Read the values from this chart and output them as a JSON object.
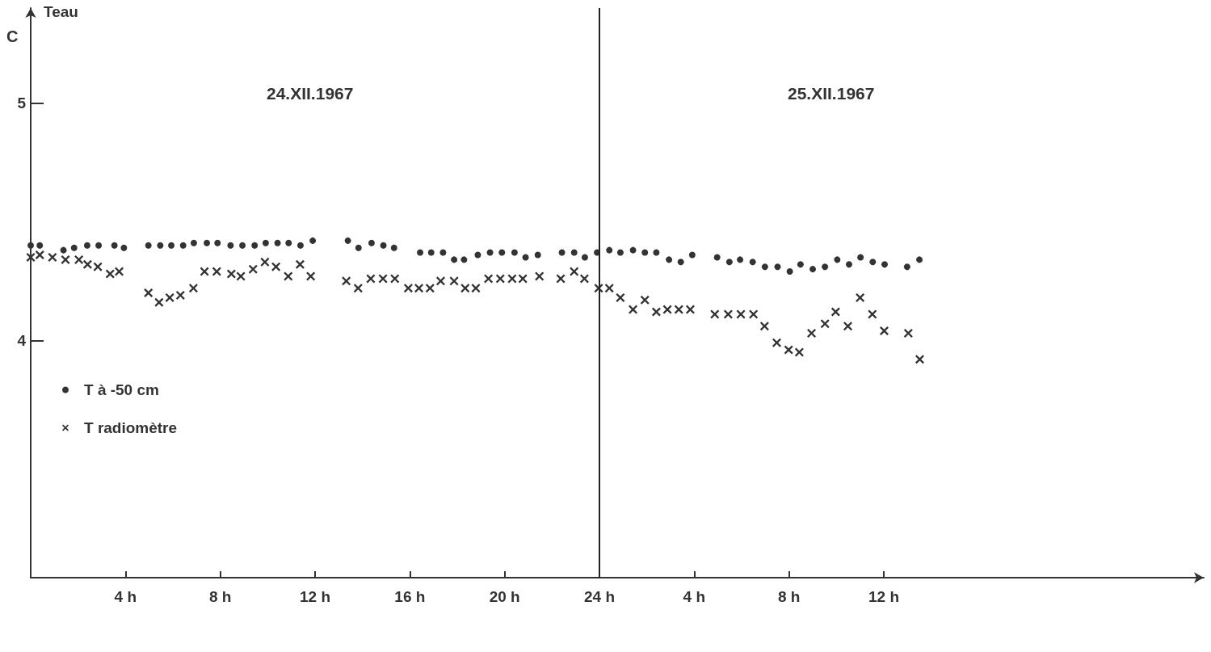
{
  "chart_data": {
    "type": "scatter",
    "ylabel": "Teau",
    "annotations": [
      "24.XII.1967",
      "25.XII.1967",
      "C"
    ],
    "xlim": [
      "1967-12-24T00:00",
      "1967-12-26T01:30"
    ],
    "ylim": [
      3,
      5.4
    ],
    "yticks": [
      4,
      5
    ],
    "xticks": [
      {
        "value": "1967-12-24T04:00",
        "label": "4 h"
      },
      {
        "value": "1967-12-24T08:00",
        "label": "8 h"
      },
      {
        "value": "1967-12-24T12:00",
        "label": "12 h"
      },
      {
        "value": "1967-12-24T16:00",
        "label": "16 h"
      },
      {
        "value": "1967-12-24T20:00",
        "label": "20 h"
      },
      {
        "value": "1967-12-25T00:00",
        "label": "24 h"
      },
      {
        "value": "1967-12-25T04:00",
        "label": "4 h"
      },
      {
        "value": "1967-12-25T08:00",
        "label": "8 h"
      },
      {
        "value": "1967-12-25T12:00",
        "label": "12 h"
      }
    ],
    "ref_lines": [
      {
        "axis": "x",
        "value": "1967-12-25T00:00",
        "label": null,
        "color": "#222222"
      }
    ],
    "grid": false,
    "legend": "bottom left",
    "series": [
      {
        "name": "T à -50 cm",
        "color": "#333333",
        "marker": "circle",
        "x": [
          "1967-12-24T00:00",
          "1967-12-24T00:23",
          "1967-12-24T01:23",
          "1967-12-24T01:50",
          "1967-12-24T02:23",
          "1967-12-24T02:52",
          "1967-12-24T03:32",
          "1967-12-24T03:56",
          "1967-12-24T04:58",
          "1967-12-24T05:28",
          "1967-12-24T05:56",
          "1967-12-24T06:26",
          "1967-12-24T06:53",
          "1967-12-24T07:26",
          "1967-12-24T07:53",
          "1967-12-24T08:26",
          "1967-12-24T08:56",
          "1967-12-24T09:27",
          "1967-12-24T09:55",
          "1967-12-24T10:25",
          "1967-12-24T10:53",
          "1967-12-24T11:23",
          "1967-12-24T11:54",
          "1967-12-24T13:23",
          "1967-12-24T13:50",
          "1967-12-24T14:23",
          "1967-12-24T14:53",
          "1967-12-24T15:20",
          "1967-12-24T16:26",
          "1967-12-24T16:54",
          "1967-12-24T17:24",
          "1967-12-24T17:52",
          "1967-12-24T18:17",
          "1967-12-24T18:52",
          "1967-12-24T19:23",
          "1967-12-24T19:53",
          "1967-12-24T20:25",
          "1967-12-24T20:53",
          "1967-12-24T21:24",
          "1967-12-24T22:25",
          "1967-12-24T22:56",
          "1967-12-24T23:23",
          "1967-12-24T23:54",
          "1967-12-25T00:25",
          "1967-12-25T00:53",
          "1967-12-25T01:25",
          "1967-12-25T01:55",
          "1967-12-25T02:24",
          "1967-12-25T02:56",
          "1967-12-25T03:26",
          "1967-12-25T03:55",
          "1967-12-25T04:58",
          "1967-12-25T05:29",
          "1967-12-25T05:56",
          "1967-12-25T06:28",
          "1967-12-25T06:59",
          "1967-12-25T07:31",
          "1967-12-25T08:02",
          "1967-12-25T08:29",
          "1967-12-25T09:00",
          "1967-12-25T09:31",
          "1967-12-25T10:02",
          "1967-12-25T10:32",
          "1967-12-25T11:01",
          "1967-12-25T11:32",
          "1967-12-25T12:02",
          "1967-12-25T12:59",
          "1967-12-25T13:30"
        ],
        "values": [
          4.4,
          4.4,
          4.38,
          4.39,
          4.4,
          4.4,
          4.4,
          4.39,
          4.4,
          4.4,
          4.4,
          4.4,
          4.41,
          4.41,
          4.41,
          4.4,
          4.4,
          4.4,
          4.41,
          4.41,
          4.41,
          4.4,
          4.42,
          4.42,
          4.39,
          4.41,
          4.4,
          4.39,
          4.37,
          4.37,
          4.37,
          4.34,
          4.34,
          4.36,
          4.37,
          4.37,
          4.37,
          4.35,
          4.36,
          4.37,
          4.37,
          4.35,
          4.37,
          4.38,
          4.37,
          4.38,
          4.37,
          4.37,
          4.34,
          4.33,
          4.36,
          4.35,
          4.33,
          4.34,
          4.33,
          4.31,
          4.31,
          4.29,
          4.32,
          4.3,
          4.31,
          4.34,
          4.32,
          4.35,
          4.33,
          4.32,
          4.31,
          4.34
        ]
      },
      {
        "name": "T radiomètre",
        "color": "#333333",
        "marker": "cross",
        "x": [
          "1967-12-24T00:00",
          "1967-12-24T00:23",
          "1967-12-24T00:55",
          "1967-12-24T01:28",
          "1967-12-24T02:02",
          "1967-12-24T02:24",
          "1967-12-24T02:50",
          "1967-12-24T03:21",
          "1967-12-24T03:44",
          "1967-12-24T04:58",
          "1967-12-24T05:25",
          "1967-12-24T05:52",
          "1967-12-24T06:19",
          "1967-12-24T06:52",
          "1967-12-24T07:20",
          "1967-12-24T07:51",
          "1967-12-24T08:28",
          "1967-12-24T08:52",
          "1967-12-24T09:23",
          "1967-12-24T09:53",
          "1967-12-24T10:21",
          "1967-12-24T10:52",
          "1967-12-24T11:22",
          "1967-12-24T11:49",
          "1967-12-24T13:19",
          "1967-12-24T13:49",
          "1967-12-24T14:21",
          "1967-12-24T14:52",
          "1967-12-24T15:22",
          "1967-12-24T15:56",
          "1967-12-24T16:23",
          "1967-12-24T16:51",
          "1967-12-24T17:18",
          "1967-12-24T17:52",
          "1967-12-24T18:20",
          "1967-12-24T18:47",
          "1967-12-24T19:19",
          "1967-12-24T19:49",
          "1967-12-24T20:19",
          "1967-12-24T20:46",
          "1967-12-24T21:28",
          "1967-12-24T22:22",
          "1967-12-24T22:56",
          "1967-12-24T23:22",
          "1967-12-24T23:58",
          "1967-12-25T00:25",
          "1967-12-25T00:53",
          "1967-12-25T01:25",
          "1967-12-25T01:55",
          "1967-12-25T02:24",
          "1967-12-25T02:52",
          "1967-12-25T03:21",
          "1967-12-25T03:50",
          "1967-12-25T04:52",
          "1967-12-25T05:26",
          "1967-12-25T05:58",
          "1967-12-25T06:30",
          "1967-12-25T06:58",
          "1967-12-25T07:29",
          "1967-12-25T07:59",
          "1967-12-25T08:26",
          "1967-12-25T08:57",
          "1967-12-25T09:31",
          "1967-12-25T09:58",
          "1967-12-25T10:29",
          "1967-12-25T11:00",
          "1967-12-25T11:31",
          "1967-12-25T12:01",
          "1967-12-25T13:02",
          "1967-12-25T13:31"
        ],
        "values": [
          4.35,
          4.36,
          4.35,
          4.34,
          4.34,
          4.32,
          4.31,
          4.28,
          4.29,
          4.2,
          4.16,
          4.18,
          4.19,
          4.22,
          4.29,
          4.29,
          4.28,
          4.27,
          4.3,
          4.33,
          4.31,
          4.27,
          4.32,
          4.27,
          4.25,
          4.22,
          4.26,
          4.26,
          4.26,
          4.22,
          4.22,
          4.22,
          4.25,
          4.25,
          4.22,
          4.22,
          4.26,
          4.26,
          4.26,
          4.26,
          4.27,
          4.26,
          4.29,
          4.26,
          4.22,
          4.22,
          4.18,
          4.13,
          4.17,
          4.12,
          4.13,
          4.13,
          4.13,
          4.11,
          4.11,
          4.11,
          4.11,
          4.06,
          3.99,
          3.96,
          3.95,
          4.03,
          4.07,
          4.12,
          4.06,
          4.18,
          4.11,
          4.04,
          4.03,
          3.92
        ]
      }
    ]
  }
}
